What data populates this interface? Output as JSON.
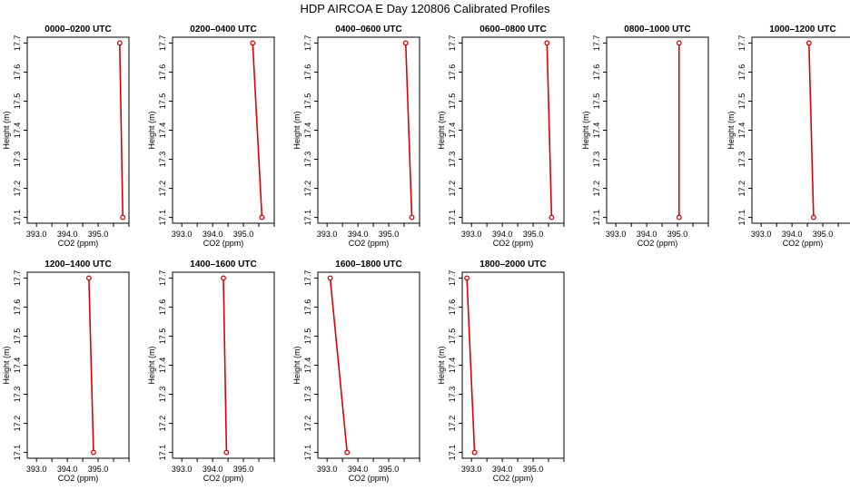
{
  "title": "HDP AIRCOA E  Day 120806  Calibrated Profiles",
  "chart_data": [
    {
      "type": "line",
      "title": "0000–0200 UTC",
      "xlabel": "CO2 (ppm)",
      "ylabel": "Height (m)",
      "x_ticks": [
        "393.0",
        "394.0",
        "395.0"
      ],
      "y_ticks": [
        "17.1",
        "17.2",
        "17.3",
        "17.4",
        "17.5",
        "17.6",
        "17.7"
      ],
      "xlim": [
        392.7,
        396.0
      ],
      "ylim": [
        17.08,
        17.72
      ],
      "grid": false,
      "series": [
        {
          "points": [
            {
              "x": 395.7,
              "y": 17.7
            },
            {
              "x": 395.8,
              "y": 17.1
            }
          ],
          "color": "#dd0000"
        }
      ]
    },
    {
      "type": "line",
      "title": "0200–0400 UTC",
      "xlabel": "CO2 (ppm)",
      "ylabel": "Height (m)",
      "x_ticks": [
        "393.0",
        "394.0",
        "395.0"
      ],
      "y_ticks": [
        "17.1",
        "17.2",
        "17.3",
        "17.4",
        "17.5",
        "17.6",
        "17.7"
      ],
      "xlim": [
        392.7,
        396.0
      ],
      "ylim": [
        17.08,
        17.72
      ],
      "grid": false,
      "series": [
        {
          "points": [
            {
              "x": 395.3,
              "y": 17.7
            },
            {
              "x": 395.6,
              "y": 17.1
            }
          ],
          "color": "#dd0000"
        }
      ]
    },
    {
      "type": "line",
      "title": "0400–0600 UTC",
      "xlabel": "CO2 (ppm)",
      "ylabel": "Height (m)",
      "x_ticks": [
        "393.0",
        "394.0",
        "395.0"
      ],
      "y_ticks": [
        "17.1",
        "17.2",
        "17.3",
        "17.4",
        "17.5",
        "17.6",
        "17.7"
      ],
      "xlim": [
        392.7,
        396.0
      ],
      "ylim": [
        17.08,
        17.72
      ],
      "grid": false,
      "series": [
        {
          "points": [
            {
              "x": 395.55,
              "y": 17.7
            },
            {
              "x": 395.75,
              "y": 17.1
            }
          ],
          "color": "#dd0000"
        }
      ]
    },
    {
      "type": "line",
      "title": "0600–0800 UTC",
      "xlabel": "CO2 (ppm)",
      "ylabel": "Height (m)",
      "x_ticks": [
        "393.0",
        "394.0",
        "395.0"
      ],
      "y_ticks": [
        "17.1",
        "17.2",
        "17.3",
        "17.4",
        "17.5",
        "17.6",
        "17.7"
      ],
      "xlim": [
        392.7,
        396.0
      ],
      "ylim": [
        17.08,
        17.72
      ],
      "grid": false,
      "series": [
        {
          "points": [
            {
              "x": 395.45,
              "y": 17.7
            },
            {
              "x": 395.6,
              "y": 17.1
            }
          ],
          "color": "#dd0000"
        }
      ]
    },
    {
      "type": "line",
      "title": "0800–1000 UTC",
      "xlabel": "CO2 (ppm)",
      "ylabel": "Height (m)",
      "x_ticks": [
        "393.0",
        "394.0",
        "395.0"
      ],
      "y_ticks": [
        "17.1",
        "17.2",
        "17.3",
        "17.4",
        "17.5",
        "17.6",
        "17.7"
      ],
      "xlim": [
        392.7,
        396.0
      ],
      "ylim": [
        17.08,
        17.72
      ],
      "grid": false,
      "series": [
        {
          "points": [
            {
              "x": 395.05,
              "y": 17.7
            },
            {
              "x": 395.05,
              "y": 17.1
            }
          ],
          "color": "#dd0000"
        }
      ]
    },
    {
      "type": "line",
      "title": "1000–1200 UTC",
      "xlabel": "CO2 (ppm)",
      "ylabel": "Height (m)",
      "x_ticks": [
        "393.0",
        "394.0",
        "395.0"
      ],
      "y_ticks": [
        "17.1",
        "17.2",
        "17.3",
        "17.4",
        "17.5",
        "17.6",
        "17.7"
      ],
      "xlim": [
        392.7,
        396.0
      ],
      "ylim": [
        17.08,
        17.72
      ],
      "grid": false,
      "series": [
        {
          "points": [
            {
              "x": 394.55,
              "y": 17.7
            },
            {
              "x": 394.7,
              "y": 17.1
            }
          ],
          "color": "#dd0000"
        }
      ]
    },
    {
      "type": "line",
      "title": "1200–1400 UTC",
      "xlabel": "CO2 (ppm)",
      "ylabel": "Height (m)",
      "x_ticks": [
        "393.0",
        "394.0",
        "395.0"
      ],
      "y_ticks": [
        "17.1",
        "17.2",
        "17.3",
        "17.4",
        "17.5",
        "17.6",
        "17.7"
      ],
      "xlim": [
        392.7,
        396.0
      ],
      "ylim": [
        17.08,
        17.72
      ],
      "grid": false,
      "series": [
        {
          "points": [
            {
              "x": 394.7,
              "y": 17.7
            },
            {
              "x": 394.85,
              "y": 17.1
            }
          ],
          "color": "#dd0000"
        }
      ]
    },
    {
      "type": "line",
      "title": "1400–1600 UTC",
      "xlabel": "CO2 (ppm)",
      "ylabel": "Height (m)",
      "x_ticks": [
        "393.0",
        "394.0",
        "395.0"
      ],
      "y_ticks": [
        "17.1",
        "17.2",
        "17.3",
        "17.4",
        "17.5",
        "17.6",
        "17.7"
      ],
      "xlim": [
        392.7,
        396.0
      ],
      "ylim": [
        17.08,
        17.72
      ],
      "grid": false,
      "series": [
        {
          "points": [
            {
              "x": 394.35,
              "y": 17.7
            },
            {
              "x": 394.45,
              "y": 17.1
            }
          ],
          "color": "#dd0000"
        }
      ]
    },
    {
      "type": "line",
      "title": "1600–1800 UTC",
      "xlabel": "CO2 (ppm)",
      "ylabel": "Height (m)",
      "x_ticks": [
        "393.0",
        "394.0",
        "395.0"
      ],
      "y_ticks": [
        "17.1",
        "17.2",
        "17.3",
        "17.4",
        "17.5",
        "17.6",
        "17.7"
      ],
      "xlim": [
        392.7,
        396.0
      ],
      "ylim": [
        17.08,
        17.72
      ],
      "grid": false,
      "series": [
        {
          "points": [
            {
              "x": 393.1,
              "y": 17.7
            },
            {
              "x": 393.65,
              "y": 17.1
            }
          ],
          "color": "#dd0000"
        }
      ]
    },
    {
      "type": "line",
      "title": "1800–2000 UTC",
      "xlabel": "CO2 (ppm)",
      "ylabel": "Height (m)",
      "x_ticks": [
        "393.0",
        "394.0",
        "395.0"
      ],
      "y_ticks": [
        "17.1",
        "17.2",
        "17.3",
        "17.4",
        "17.5",
        "17.6",
        "17.7"
      ],
      "xlim": [
        392.7,
        396.0
      ],
      "ylim": [
        17.08,
        17.72
      ],
      "grid": false,
      "series": [
        {
          "points": [
            {
              "x": 392.85,
              "y": 17.7
            },
            {
              "x": 393.1,
              "y": 17.1
            }
          ],
          "color": "#dd0000"
        }
      ]
    }
  ]
}
